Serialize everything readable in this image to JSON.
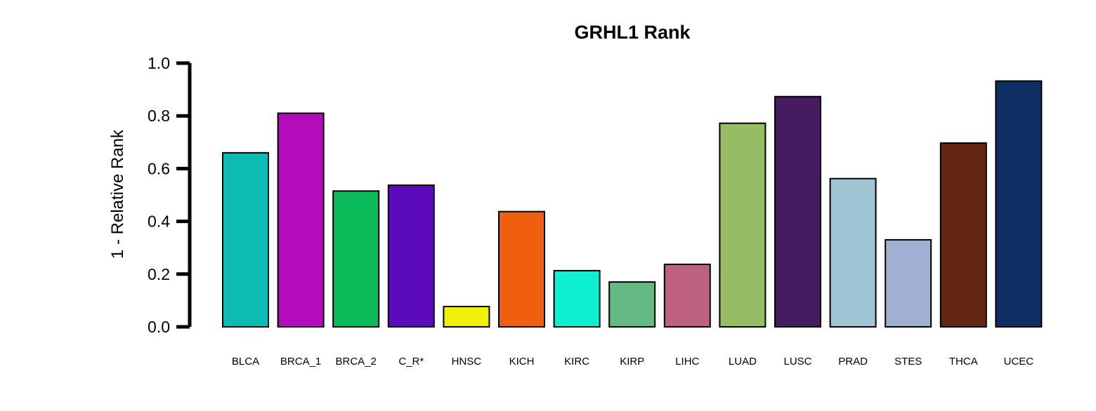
{
  "chart_data": {
    "type": "bar",
    "title": "GRHL1 Rank",
    "xlabel": "",
    "ylabel": "1 - Relative Rank",
    "ylim": [
      0,
      1
    ],
    "yticks": [
      "0.0",
      "0.2",
      "0.4",
      "0.6",
      "0.8",
      "1.0"
    ],
    "grid": false,
    "legend": "none",
    "categories": [
      "BLCA",
      "BRCA_1",
      "BRCA_2",
      "C_R*",
      "HNSC",
      "KICH",
      "KIRC",
      "KIRP",
      "LIHC",
      "LUAD",
      "LUSC",
      "PRAD",
      "STES",
      "THCA",
      "UCEC"
    ],
    "values": [
      0.66,
      0.81,
      0.515,
      0.537,
      0.077,
      0.437,
      0.213,
      0.17,
      0.237,
      0.772,
      0.873,
      0.562,
      0.33,
      0.697,
      0.932
    ],
    "colors": [
      "#0BBBB4",
      "#B40BBB",
      "#0BBB5A",
      "#5C0BBB",
      "#F0F00B",
      "#F05F0F",
      "#0FF0D2",
      "#64BA82",
      "#BC6182",
      "#96BD64",
      "#461B5F",
      "#A0C5D4",
      "#A0AFD2",
      "#642812",
      "#0F2F64"
    ]
  }
}
